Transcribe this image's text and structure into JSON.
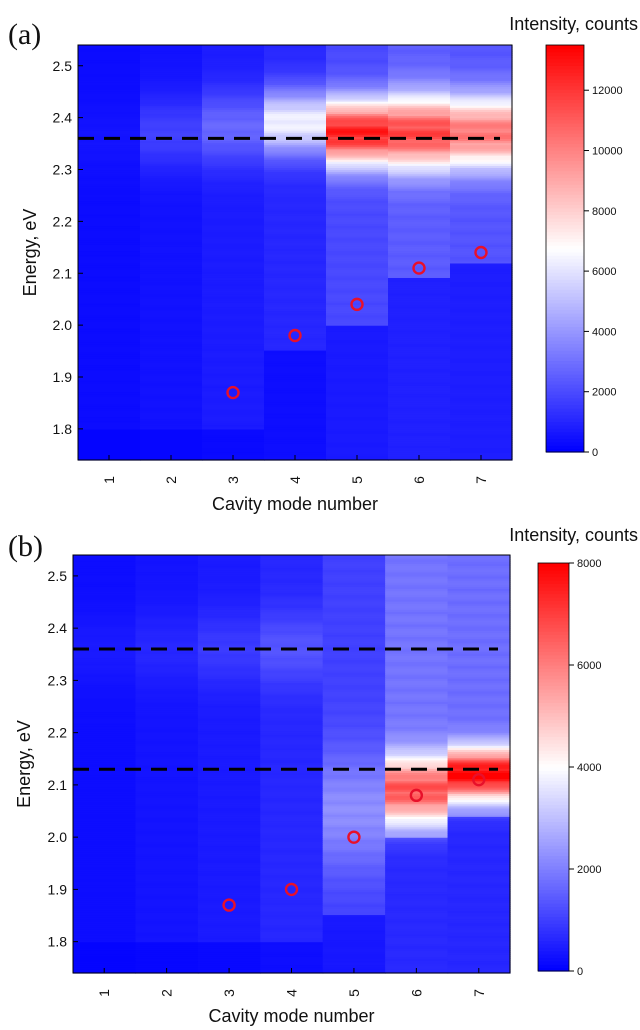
{
  "chart_data": [
    {
      "type": "heatmap",
      "panel_label": "(a)",
      "xlabel": "Cavity mode number",
      "ylabel": "Energy, eV",
      "x_ticks": [
        "1",
        "2",
        "3",
        "4",
        "5",
        "6",
        "7"
      ],
      "y_ticks": [
        "1.8",
        "1.9",
        "2.0",
        "2.1",
        "2.2",
        "2.3",
        "2.4",
        "2.5"
      ],
      "ylim": [
        1.74,
        2.54
      ],
      "colorbar": {
        "title": "Intensity, counts",
        "min": 0,
        "max": 13500,
        "ticks": [
          "0",
          "2000",
          "4000",
          "6000",
          "8000",
          "10000",
          "12000"
        ]
      },
      "colormap": [
        "#0000ff",
        "#ffffff",
        "#ff0000"
      ],
      "dashed_lines_energy": [
        2.36
      ],
      "spectra": [
        {
          "mode": 1,
          "peak_energy": 2.36,
          "width": 0.05,
          "peak_intensity": 500,
          "background": 300,
          "tail_from": 1.8
        },
        {
          "mode": 2,
          "peak_energy": 2.37,
          "width": 0.05,
          "peak_intensity": 1700,
          "background": 450,
          "tail_from": 1.8
        },
        {
          "mode": 3,
          "peak_energy": 2.38,
          "width": 0.05,
          "peak_intensity": 2700,
          "background": 700,
          "tail_from": 1.8
        },
        {
          "mode": 4,
          "peak_energy": 2.39,
          "width": 0.045,
          "peak_intensity": 6300,
          "background": 1000,
          "tail_from": 1.95
        },
        {
          "mode": 5,
          "peak_energy": 2.37,
          "width": 0.045,
          "peak_intensity": 12500,
          "background": 1900,
          "tail_from": 2.0
        },
        {
          "mode": 6,
          "peak_energy": 2.37,
          "width": 0.05,
          "peak_intensity": 11500,
          "background": 2400,
          "tail_from": 2.09
        },
        {
          "mode": 7,
          "peak_energy": 2.37,
          "width": 0.05,
          "peak_intensity": 10200,
          "background": 2200,
          "tail_from": 2.12
        }
      ],
      "cavity_modes": [
        {
          "mode": 3,
          "energy": 1.87
        },
        {
          "mode": 4,
          "energy": 1.98
        },
        {
          "mode": 5,
          "energy": 2.04
        },
        {
          "mode": 6,
          "energy": 2.11
        },
        {
          "mode": 7,
          "energy": 2.14
        }
      ]
    },
    {
      "type": "heatmap",
      "panel_label": "(b)",
      "xlabel": "Cavity mode number",
      "ylabel": "Energy, eV",
      "x_ticks": [
        "1",
        "2",
        "3",
        "4",
        "5",
        "6",
        "7"
      ],
      "y_ticks": [
        "1.8",
        "1.9",
        "2.0",
        "2.1",
        "2.2",
        "2.3",
        "2.4",
        "2.5"
      ],
      "ylim": [
        1.74,
        2.54
      ],
      "colorbar": {
        "title": "Intensity, counts",
        "min": 0,
        "max": 8000,
        "ticks": [
          "0",
          "2000",
          "4000",
          "6000",
          "8000"
        ]
      },
      "colormap": [
        "#0000ff",
        "#ffffff",
        "#ff0000"
      ],
      "dashed_lines_energy": [
        2.36,
        2.13
      ],
      "spectra": [
        {
          "mode": 1,
          "peak_energy": 2.36,
          "width": 0.05,
          "peak_intensity": 400,
          "background": 200,
          "tail_from": 1.8
        },
        {
          "mode": 2,
          "peak_energy": 2.36,
          "width": 0.05,
          "peak_intensity": 600,
          "background": 300,
          "tail_from": 1.8
        },
        {
          "mode": 3,
          "peak_energy": 2.36,
          "width": 0.05,
          "peak_intensity": 900,
          "background": 400,
          "tail_from": 1.8
        },
        {
          "mode": 4,
          "peak_energy": 2.36,
          "width": 0.05,
          "peak_intensity": 1300,
          "background": 600,
          "tail_from": 1.8
        },
        {
          "mode": 5,
          "peak_energy": 2.05,
          "width": 0.08,
          "peak_intensity": 2200,
          "background": 1000,
          "tail_from": 1.85
        },
        {
          "mode": 6,
          "peak_energy": 2.09,
          "width": 0.045,
          "peak_intensity": 6600,
          "background": 1800,
          "tail_from": 2.0
        },
        {
          "mode": 7,
          "peak_energy": 2.12,
          "width": 0.035,
          "peak_intensity": 7900,
          "background": 1700,
          "tail_from": 2.04
        }
      ],
      "cavity_modes": [
        {
          "mode": 3,
          "energy": 1.87
        },
        {
          "mode": 4,
          "energy": 1.9
        },
        {
          "mode": 5,
          "energy": 2.0
        },
        {
          "mode": 6,
          "energy": 2.08
        },
        {
          "mode": 7,
          "energy": 2.11
        }
      ]
    }
  ]
}
